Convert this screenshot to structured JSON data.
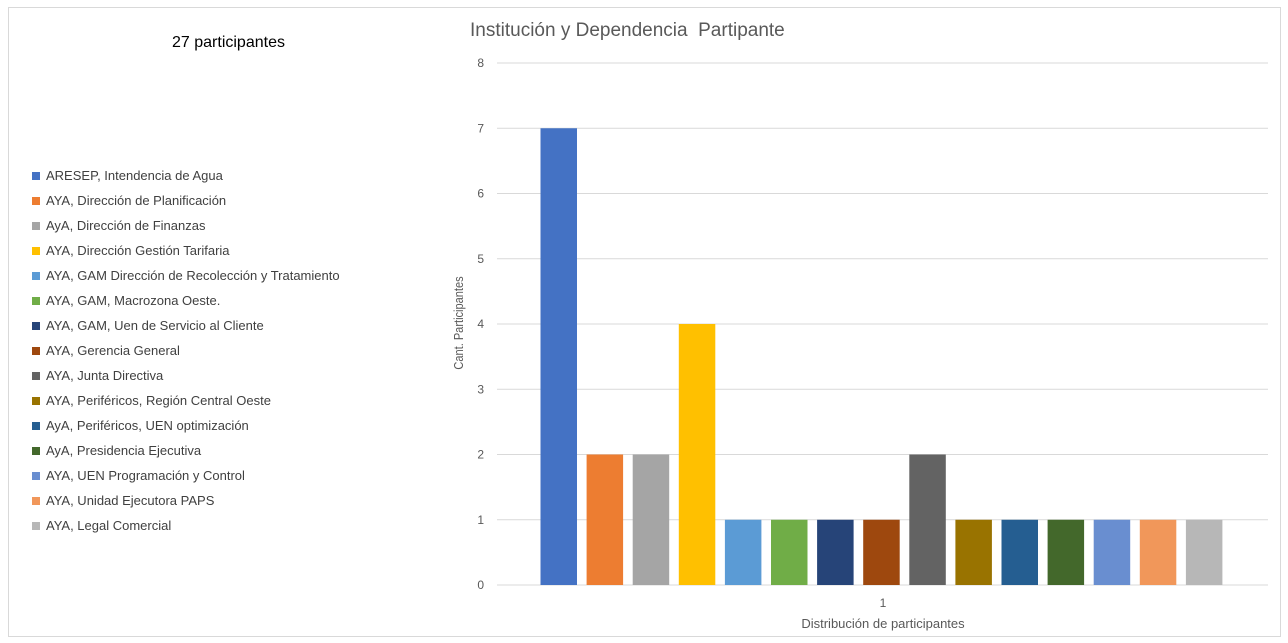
{
  "summary": {
    "participants_label": "27 participantes"
  },
  "chart_data": {
    "type": "bar",
    "title": "Institución y Dependencia  Partipante",
    "xlabel": "Distribución de participantes",
    "ylabel": "Cant. Participantes",
    "categories": [
      "1"
    ],
    "ylim": [
      0,
      8
    ],
    "yticks": [
      0,
      1,
      2,
      3,
      4,
      5,
      6,
      7,
      8
    ],
    "grid": true,
    "legend_position": "left",
    "series": [
      {
        "name": "ARESEP, Intendencia de Agua",
        "values": [
          7
        ],
        "color": "#4472c4"
      },
      {
        "name": "AYA, Dirección de Planificación",
        "values": [
          2
        ],
        "color": "#ed7d31"
      },
      {
        "name": "AyA, Dirección de Finanzas",
        "values": [
          2
        ],
        "color": "#a5a5a5"
      },
      {
        "name": "AYA, Dirección Gestión Tarifaria",
        "values": [
          4
        ],
        "color": "#ffc000"
      },
      {
        "name": "AYA, GAM Dirección de Recolección y Tratamiento",
        "values": [
          1
        ],
        "color": "#5b9bd5"
      },
      {
        "name": "AYA, GAM, Macrozona Oeste.",
        "values": [
          1
        ],
        "color": "#70ad47"
      },
      {
        "name": "AYA, GAM, Uen de Servicio al Cliente",
        "values": [
          1
        ],
        "color": "#264478"
      },
      {
        "name": "AYA, Gerencia General",
        "values": [
          1
        ],
        "color": "#9e480e"
      },
      {
        "name": "AYA, Junta Directiva",
        "values": [
          2
        ],
        "color": "#636363"
      },
      {
        "name": "AYA, Periféricos, Región Central Oeste",
        "values": [
          1
        ],
        "color": "#997300"
      },
      {
        "name": "AyA, Periféricos, UEN optimización",
        "values": [
          1
        ],
        "color": "#255e91"
      },
      {
        "name": "AyA, Presidencia Ejecutiva",
        "values": [
          1
        ],
        "color": "#43682b"
      },
      {
        "name": "AYA, UEN Programación y Control",
        "values": [
          1
        ],
        "color": "#698ed0"
      },
      {
        "name": "AYA, Unidad Ejecutora PAPS",
        "values": [
          1
        ],
        "color": "#f1975a"
      },
      {
        "name": "AYA, Legal Comercial",
        "values": [
          1
        ],
        "color": "#b7b7b7"
      }
    ]
  }
}
